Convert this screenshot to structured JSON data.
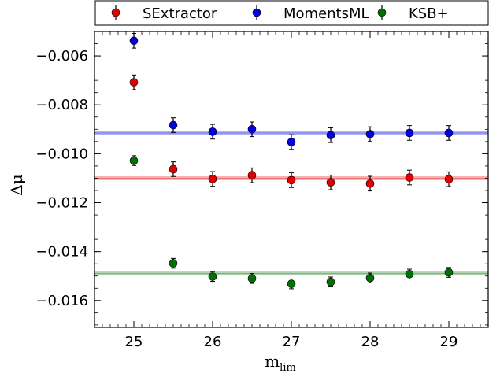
{
  "chart_data": {
    "type": "scatter",
    "xlabel": "m",
    "xlabel_sub": "lim",
    "ylabel": "Δμ",
    "xlim": [
      24.5,
      29.5
    ],
    "ylim": [
      -0.0171,
      -0.005
    ],
    "xticks": [
      25,
      26,
      27,
      28,
      29
    ],
    "yticks": [
      -0.006,
      -0.008,
      -0.01,
      -0.012,
      -0.014,
      -0.016
    ],
    "ytick_labels": [
      "−0.006",
      "−0.008",
      "−0.010",
      "−0.012",
      "−0.014",
      "−0.016"
    ],
    "xtick_labels": [
      "25",
      "26",
      "27",
      "28",
      "29"
    ],
    "grid": false,
    "legend_position": "top (above plot)",
    "x": [
      25,
      25.5,
      26,
      26.5,
      27,
      27.5,
      28,
      28.5,
      29
    ],
    "series": [
      {
        "name": "SExtractor",
        "color": "#e00000",
        "values": [
          -0.00708,
          -0.01063,
          -0.01103,
          -0.01088,
          -0.01108,
          -0.01117,
          -0.01122,
          -0.01097,
          -0.01104
        ],
        "errors": [
          0.0003,
          0.0003,
          0.0003,
          0.0003,
          0.0003,
          0.0003,
          0.0003,
          0.0003,
          0.0003
        ],
        "mean": -0.011,
        "mean_band": 8e-05
      },
      {
        "name": "MomentsML",
        "color": "#0000e0",
        "values": [
          -0.00538,
          -0.00883,
          -0.0091,
          -0.009,
          -0.00952,
          -0.00924,
          -0.0092,
          -0.00915,
          -0.00915
        ],
        "errors": [
          0.0003,
          0.0003,
          0.0003,
          0.0003,
          0.0003,
          0.0003,
          0.0003,
          0.0003,
          0.0003
        ],
        "mean": -0.00915,
        "mean_band": 8e-05
      },
      {
        "name": "KSB+",
        "color": "#007000",
        "values": [
          -0.01028,
          -0.01448,
          -0.01502,
          -0.0151,
          -0.01532,
          -0.01524,
          -0.01508,
          -0.01492,
          -0.01485
        ],
        "errors": [
          0.0002,
          0.0002,
          0.0002,
          0.0002,
          0.0002,
          0.0002,
          0.0002,
          0.0002,
          0.0002
        ],
        "mean": -0.0149,
        "mean_band": 8e-05
      }
    ]
  }
}
